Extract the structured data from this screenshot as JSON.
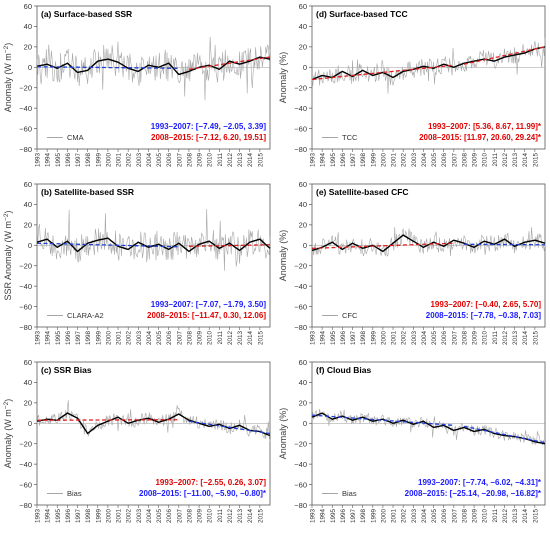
{
  "figure": {
    "colors": {
      "raw": "#a6a6a6",
      "smooth": "#000000",
      "trend_blue": "#1f3fd6",
      "trend_red": "#e02020",
      "zero_line": "#9a9a9a",
      "frame": "#595959",
      "text_blue": "#1a1aff",
      "text_red": "#e00000"
    },
    "years": [
      "1993",
      "1994",
      "1995",
      "1996",
      "1997",
      "1998",
      "1999",
      "2000",
      "2001",
      "2002",
      "2003",
      "2004",
      "2005",
      "2006",
      "2007",
      "2008",
      "2009",
      "2010",
      "2011",
      "2012",
      "2013",
      "2014",
      "2015"
    ]
  },
  "chart_data": [
    {
      "id": "a",
      "type": "line",
      "title": "(a) Surface-based SSR",
      "ylabel_main": "Anomaly (W m",
      "ylabel_sup": "−2",
      "ylabel_close": ")",
      "ylim": [
        -80,
        60
      ],
      "yticks": [
        "60",
        "40",
        "20",
        "0",
        "−20",
        "−40",
        "−60",
        "−80"
      ],
      "xrange": [
        1993,
        2016
      ],
      "legend": "CMA",
      "series_trend": [
        {
          "period": "1993–2007",
          "start": 1993,
          "end": 2007,
          "from": 0.5,
          "to": -1.0,
          "color": "blue"
        },
        {
          "period": "2008–2015",
          "start": 2008,
          "end": 2016,
          "from": -2.0,
          "to": 10.0,
          "color": "red"
        }
      ],
      "smooth_anchors": [
        [
          1993,
          1
        ],
        [
          1994,
          3
        ],
        [
          1995,
          -1
        ],
        [
          1996,
          4
        ],
        [
          1997,
          -5
        ],
        [
          1998,
          -3
        ],
        [
          1999,
          6
        ],
        [
          2000,
          8
        ],
        [
          2001,
          5
        ],
        [
          2002,
          -1
        ],
        [
          2003,
          -4
        ],
        [
          2004,
          2
        ],
        [
          2005,
          0
        ],
        [
          2006,
          4
        ],
        [
          2007,
          -7
        ],
        [
          2008,
          -4
        ],
        [
          2009,
          0
        ],
        [
          2010,
          2
        ],
        [
          2011,
          -2
        ],
        [
          2012,
          6
        ],
        [
          2013,
          3
        ],
        [
          2014,
          6
        ],
        [
          2015,
          10
        ],
        [
          2016,
          8
        ]
      ],
      "raw_amplitude": 15,
      "annotations": [
        {
          "text": "1993–2007: [−7.49, −2.05, 3.39]",
          "color": "blue"
        },
        {
          "text": "2008–2015: [−7.12, 6.20, 19.51]",
          "color": "red"
        }
      ]
    },
    {
      "id": "d",
      "type": "line",
      "title": "(d) Surface-based TCC",
      "ylabel_main": "Anomaly (%)",
      "ylabel_sup": "",
      "ylabel_close": "",
      "ylim": [
        -80,
        60
      ],
      "yticks": [
        "60",
        "40",
        "20",
        "0",
        "−20",
        "−40",
        "−60",
        "−80"
      ],
      "xrange": [
        1993,
        2016
      ],
      "legend": "TCC",
      "series_trend": [
        {
          "period": "1993–2007",
          "start": 1993,
          "end": 2007,
          "from": -12.0,
          "to": 2.0,
          "color": "red"
        },
        {
          "period": "2008–2015",
          "start": 2008,
          "end": 2016,
          "from": 3.0,
          "to": 20.0,
          "color": "red"
        }
      ],
      "smooth_anchors": [
        [
          1993,
          -12
        ],
        [
          1994,
          -8
        ],
        [
          1995,
          -10
        ],
        [
          1996,
          -4
        ],
        [
          1997,
          -9
        ],
        [
          1998,
          -3
        ],
        [
          1999,
          -8
        ],
        [
          2000,
          -5
        ],
        [
          2001,
          -10
        ],
        [
          2002,
          -4
        ],
        [
          2003,
          -2
        ],
        [
          2004,
          1
        ],
        [
          2005,
          -1
        ],
        [
          2006,
          3
        ],
        [
          2007,
          0
        ],
        [
          2008,
          4
        ],
        [
          2009,
          6
        ],
        [
          2010,
          8
        ],
        [
          2011,
          6
        ],
        [
          2012,
          10
        ],
        [
          2013,
          12
        ],
        [
          2014,
          14
        ],
        [
          2015,
          18
        ],
        [
          2016,
          20
        ]
      ],
      "raw_amplitude": 9,
      "annotations": [
        {
          "text": "1993–2007: [5.36, 8.67, 11.99]*",
          "color": "red"
        },
        {
          "text": "2008–2015: [11.97, 20.60, 29.24]*",
          "color": "red"
        }
      ]
    },
    {
      "id": "b",
      "type": "line",
      "title": "(b) Satellite-based SSR",
      "ylabel_main": "SSR Anomaly (W m",
      "ylabel_sup": "−2",
      "ylabel_close": ")",
      "ylim": [
        -80,
        60
      ],
      "yticks": [
        "60",
        "40",
        "20",
        "0",
        "−20",
        "−40",
        "−60",
        "−80"
      ],
      "xrange": [
        1993,
        2016
      ],
      "legend": "CLARA-A2",
      "series_trend": [
        {
          "period": "1993–2007",
          "start": 1993,
          "end": 2007,
          "from": 2.0,
          "to": -1.5,
          "color": "blue"
        },
        {
          "period": "2008–2015",
          "start": 2008,
          "end": 2016,
          "from": -1.0,
          "to": 0.5,
          "color": "red"
        }
      ],
      "smooth_anchors": [
        [
          1993,
          3
        ],
        [
          1994,
          6
        ],
        [
          1995,
          -2
        ],
        [
          1996,
          4
        ],
        [
          1997,
          -6
        ],
        [
          1998,
          2
        ],
        [
          1999,
          5
        ],
        [
          2000,
          7
        ],
        [
          2001,
          -1
        ],
        [
          2002,
          -4
        ],
        [
          2003,
          3
        ],
        [
          2004,
          -2
        ],
        [
          2005,
          1
        ],
        [
          2006,
          -4
        ],
        [
          2007,
          2
        ],
        [
          2008,
          -6
        ],
        [
          2009,
          1
        ],
        [
          2010,
          4
        ],
        [
          2011,
          -3
        ],
        [
          2012,
          2
        ],
        [
          2013,
          -5
        ],
        [
          2014,
          3
        ],
        [
          2015,
          6
        ],
        [
          2016,
          -3
        ]
      ],
      "raw_amplitude": 14,
      "annotations": [
        {
          "text": "1993–2007: [−7.07, −1.79, 3.50]",
          "color": "blue"
        },
        {
          "text": "2008–2015: [−11.47, 0.30, 12.06]",
          "color": "red"
        }
      ]
    },
    {
      "id": "e",
      "type": "line",
      "title": "(e) Satellite-based CFC",
      "ylabel_main": "Anomaly (%)",
      "ylabel_sup": "",
      "ylabel_close": "",
      "ylim": [
        -80,
        60
      ],
      "yticks": [
        "60",
        "40",
        "20",
        "0",
        "−20",
        "−40",
        "−60",
        "−80"
      ],
      "xrange": [
        1993,
        2016
      ],
      "legend": "CFC",
      "series_trend": [
        {
          "period": "1993–2007",
          "start": 1993,
          "end": 2007,
          "from": -3.0,
          "to": 2.0,
          "color": "red"
        },
        {
          "period": "2008–2015",
          "start": 2008,
          "end": 2016,
          "from": 1.0,
          "to": 0.5,
          "color": "blue"
        }
      ],
      "smooth_anchors": [
        [
          1993,
          -5
        ],
        [
          1994,
          -2
        ],
        [
          1995,
          3
        ],
        [
          1996,
          -4
        ],
        [
          1997,
          2
        ],
        [
          1998,
          -3
        ],
        [
          1999,
          0
        ],
        [
          2000,
          -6
        ],
        [
          2001,
          2
        ],
        [
          2002,
          10
        ],
        [
          2003,
          4
        ],
        [
          2004,
          -2
        ],
        [
          2005,
          3
        ],
        [
          2006,
          -1
        ],
        [
          2007,
          5
        ],
        [
          2008,
          2
        ],
        [
          2009,
          -2
        ],
        [
          2010,
          4
        ],
        [
          2011,
          1
        ],
        [
          2012,
          6
        ],
        [
          2013,
          -1
        ],
        [
          2014,
          3
        ],
        [
          2015,
          5
        ],
        [
          2016,
          2
        ]
      ],
      "raw_amplitude": 8,
      "annotations": [
        {
          "text": "1993–2007: [−0.40, 2.65, 5.70]",
          "color": "red"
        },
        {
          "text": "2008–2015: [−7.78, −0.38, 7.03]",
          "color": "blue"
        }
      ]
    },
    {
      "id": "c",
      "type": "line",
      "title": "(c) SSR Bias",
      "ylabel_main": "Anomaly (W m",
      "ylabel_sup": "−2",
      "ylabel_close": ")",
      "ylim": [
        -80,
        60
      ],
      "yticks": [
        "60",
        "40",
        "20",
        "0",
        "−20",
        "−40",
        "−60",
        "−80"
      ],
      "xrange": [
        1993,
        2016
      ],
      "legend": "Bias",
      "series_trend": [
        {
          "period": "1993–2007",
          "start": 1993,
          "end": 2007,
          "from": 3.0,
          "to": 3.5,
          "color": "red"
        },
        {
          "period": "2008–2015",
          "start": 2008,
          "end": 2016,
          "from": 2.0,
          "to": -10.0,
          "color": "blue"
        }
      ],
      "smooth_anchors": [
        [
          1993,
          2
        ],
        [
          1994,
          4
        ],
        [
          1995,
          3
        ],
        [
          1996,
          10
        ],
        [
          1997,
          5
        ],
        [
          1998,
          -10
        ],
        [
          1999,
          -2
        ],
        [
          2000,
          2
        ],
        [
          2001,
          6
        ],
        [
          2002,
          0
        ],
        [
          2003,
          3
        ],
        [
          2004,
          5
        ],
        [
          2005,
          1
        ],
        [
          2006,
          4
        ],
        [
          2007,
          9
        ],
        [
          2008,
          3
        ],
        [
          2009,
          0
        ],
        [
          2010,
          -3
        ],
        [
          2011,
          -1
        ],
        [
          2012,
          -5
        ],
        [
          2013,
          -2
        ],
        [
          2014,
          -7
        ],
        [
          2015,
          -8
        ],
        [
          2016,
          -12
        ]
      ],
      "raw_amplitude": 6,
      "annotations": [
        {
          "text": "1993–2007: [−2.55, 0.26, 3.07]",
          "color": "red"
        },
        {
          "text": "2008–2015: [−11.00, −5.90, −0.80]*",
          "color": "blue"
        }
      ]
    },
    {
      "id": "f",
      "type": "line",
      "title": "(f) Cloud Bias",
      "ylabel_main": "Anomaly (%)",
      "ylabel_sup": "",
      "ylabel_close": "",
      "ylim": [
        -80,
        60
      ],
      "yticks": [
        "60",
        "40",
        "20",
        "0",
        "−20",
        "−40",
        "−60",
        "−80"
      ],
      "xrange": [
        1993,
        2016
      ],
      "legend": "Bias",
      "series_trend": [
        {
          "period": "1993–2007",
          "start": 1993,
          "end": 2007,
          "from": 8.0,
          "to": -2.0,
          "color": "blue"
        },
        {
          "period": "2008–2015",
          "start": 2008,
          "end": 2016,
          "from": -3.0,
          "to": -19.0,
          "color": "blue"
        }
      ],
      "smooth_anchors": [
        [
          1993,
          6
        ],
        [
          1994,
          10
        ],
        [
          1995,
          4
        ],
        [
          1996,
          7
        ],
        [
          1997,
          3
        ],
        [
          1998,
          6
        ],
        [
          1999,
          2
        ],
        [
          2000,
          4
        ],
        [
          2001,
          0
        ],
        [
          2002,
          3
        ],
        [
          2003,
          -1
        ],
        [
          2004,
          2
        ],
        [
          2005,
          -4
        ],
        [
          2006,
          -2
        ],
        [
          2007,
          -7
        ],
        [
          2008,
          -4
        ],
        [
          2009,
          -8
        ],
        [
          2010,
          -6
        ],
        [
          2011,
          -10
        ],
        [
          2012,
          -12
        ],
        [
          2013,
          -13
        ],
        [
          2014,
          -15
        ],
        [
          2015,
          -18
        ],
        [
          2016,
          -20
        ]
      ],
      "raw_amplitude": 5,
      "annotations": [
        {
          "text": "1993–2007: [−7.74, −6.02, −4.31]*",
          "color": "blue"
        },
        {
          "text": "2008–2015: [−25.14, −20.98, −16.82]*",
          "color": "blue"
        }
      ]
    }
  ]
}
